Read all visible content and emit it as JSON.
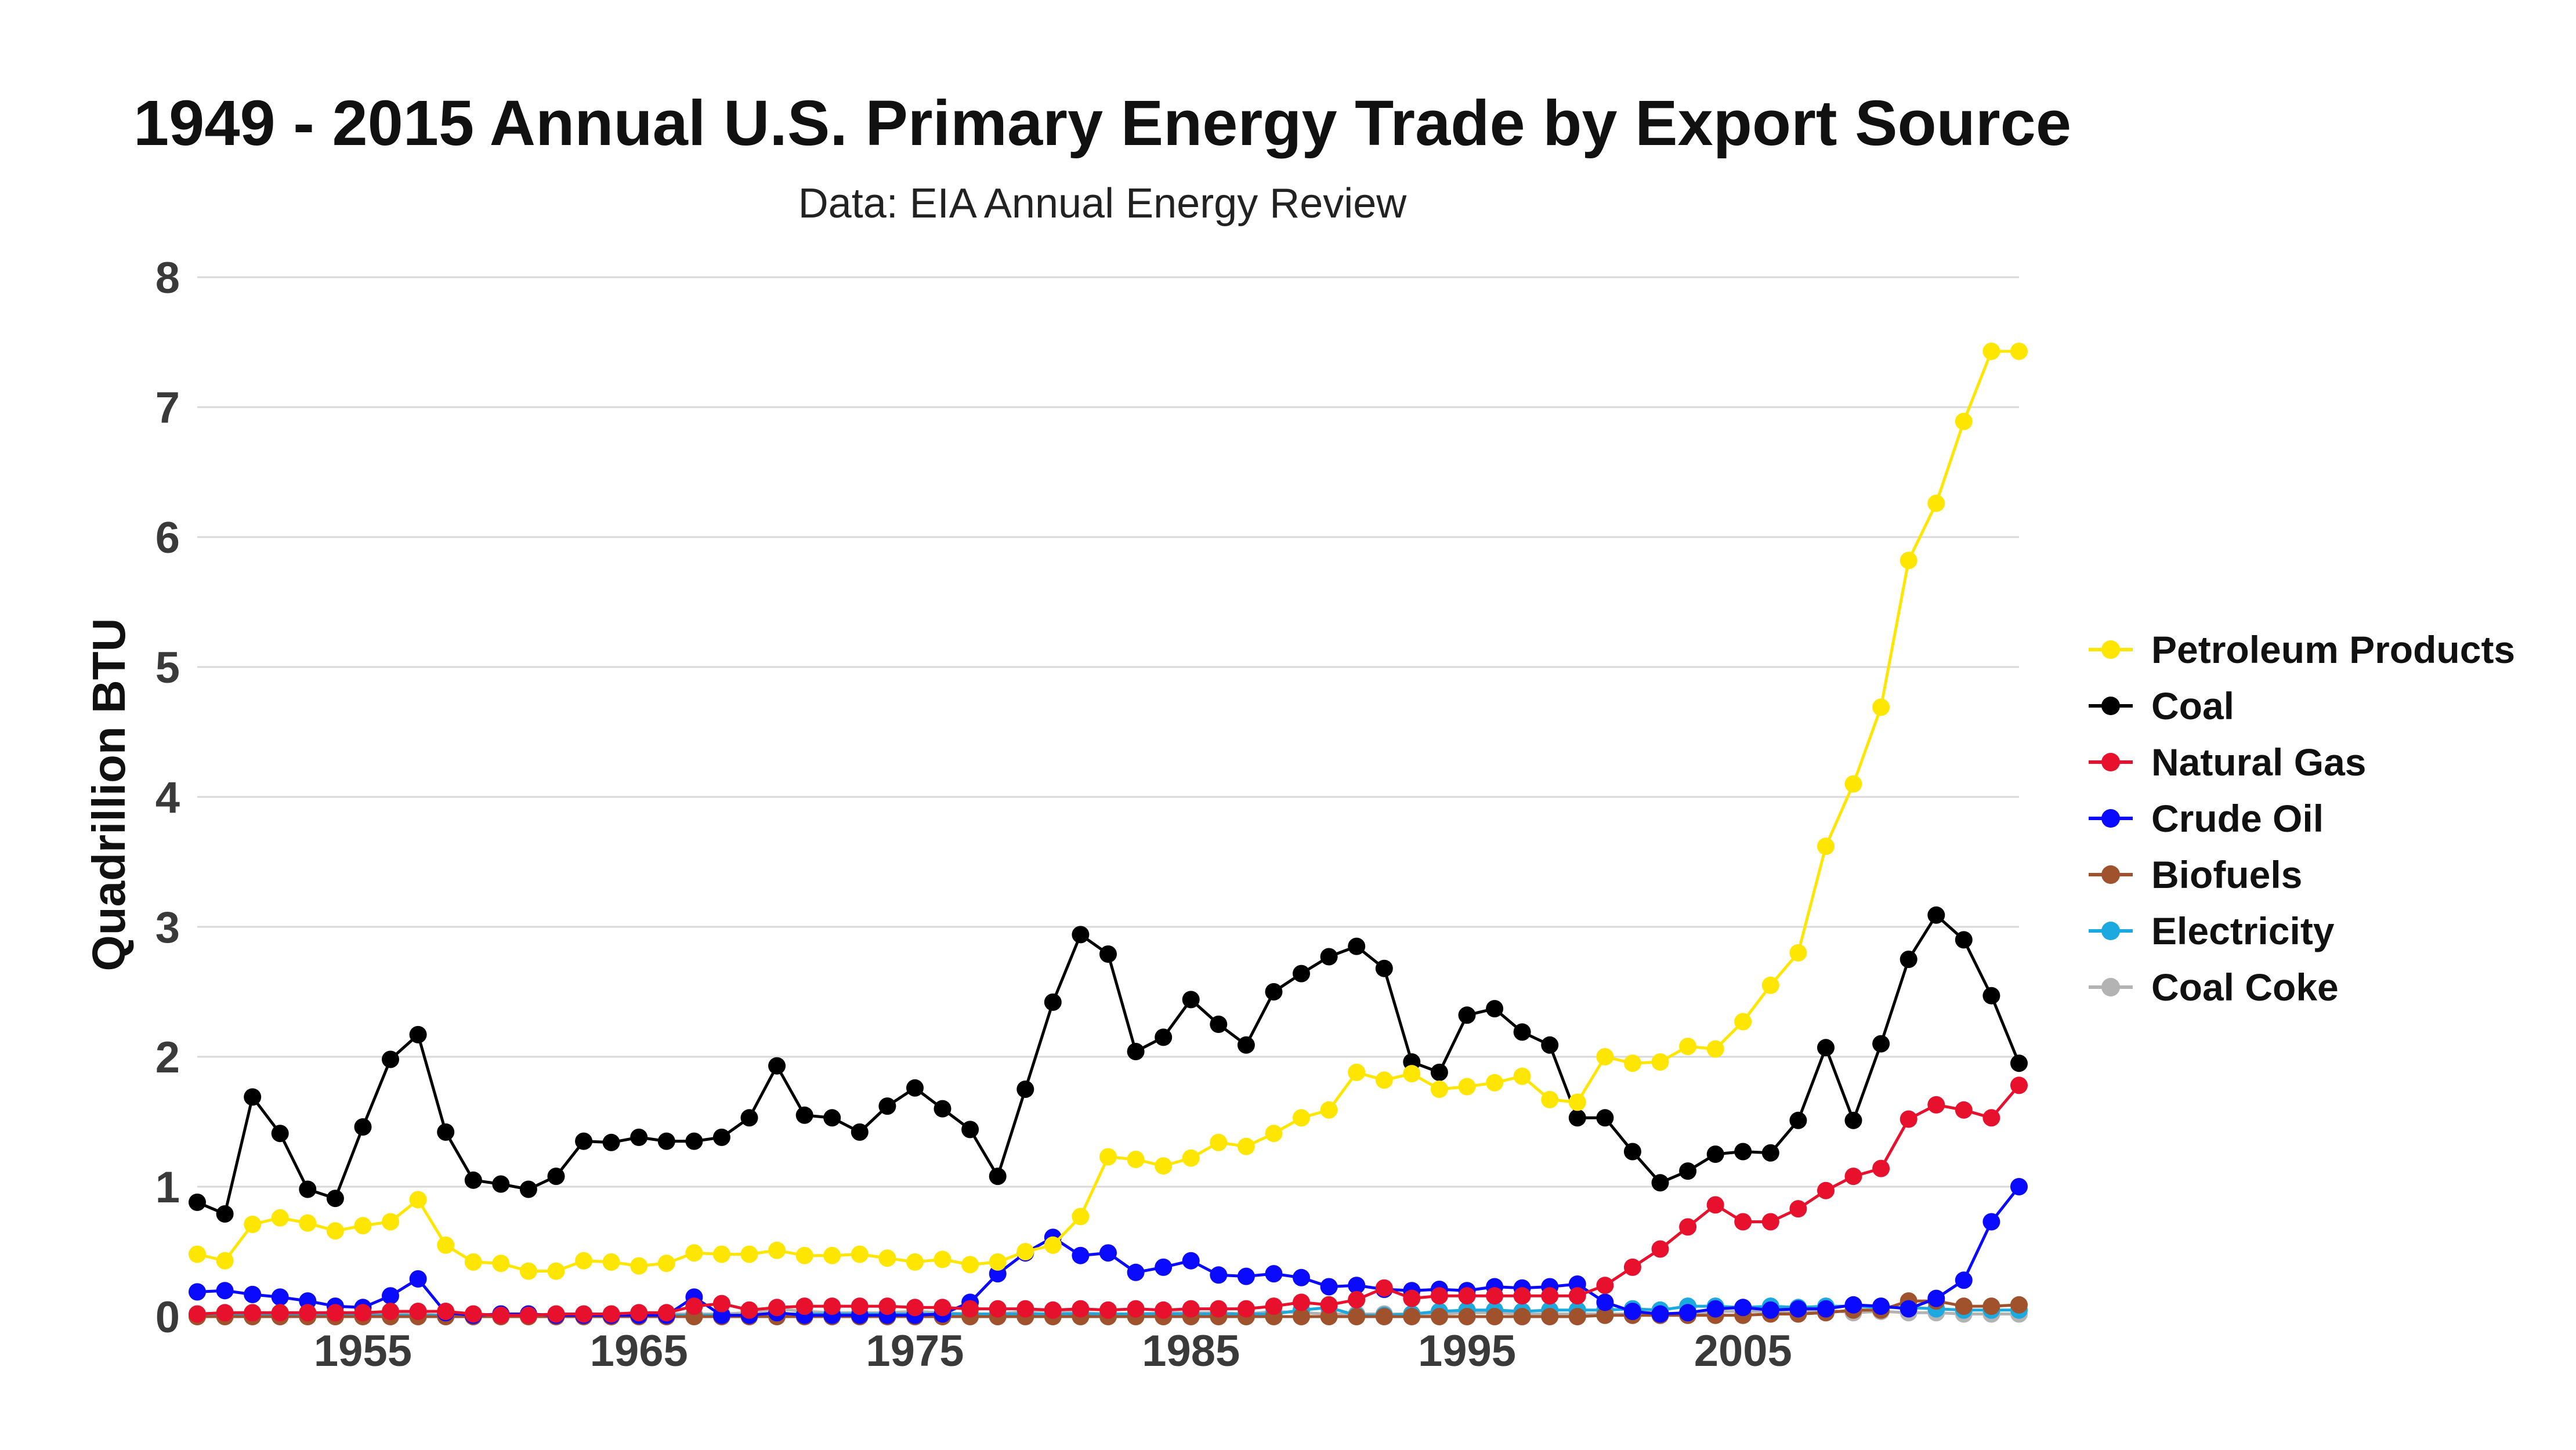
{
  "chart_data": {
    "type": "line",
    "title": "1949 - 2015 Annual U.S. Primary Energy Trade by Export Source",
    "subtitle": "Data: EIA Annual Energy Review",
    "ylabel": "Quadrillion BTU",
    "xlabel": "",
    "xlim": [
      1949,
      2015
    ],
    "ylim": [
      0,
      8
    ],
    "x_ticks": [
      1955,
      1965,
      1975,
      1985,
      1995,
      2005
    ],
    "y_ticks": [
      0,
      1,
      2,
      3,
      4,
      5,
      6,
      7,
      8
    ],
    "grid": "horizontal",
    "legend_position": "right",
    "x": [
      1949,
      1950,
      1951,
      1952,
      1953,
      1954,
      1955,
      1956,
      1957,
      1958,
      1959,
      1960,
      1961,
      1962,
      1963,
      1964,
      1965,
      1966,
      1967,
      1968,
      1969,
      1970,
      1971,
      1972,
      1973,
      1974,
      1975,
      1976,
      1977,
      1978,
      1979,
      1980,
      1981,
      1982,
      1983,
      1984,
      1985,
      1986,
      1987,
      1988,
      1989,
      1990,
      1991,
      1992,
      1993,
      1994,
      1995,
      1996,
      1997,
      1998,
      1999,
      2000,
      2001,
      2002,
      2003,
      2004,
      2005,
      2006,
      2007,
      2008,
      2009,
      2010,
      2011,
      2012,
      2013,
      2014,
      2015
    ],
    "series": [
      {
        "name": "Petroleum Products",
        "color": "#ffe600",
        "values": [
          0.48,
          0.43,
          0.71,
          0.76,
          0.72,
          0.66,
          0.7,
          0.73,
          0.9,
          0.55,
          0.42,
          0.41,
          0.35,
          0.35,
          0.43,
          0.42,
          0.39,
          0.41,
          0.49,
          0.48,
          0.48,
          0.51,
          0.47,
          0.47,
          0.48,
          0.45,
          0.42,
          0.44,
          0.4,
          0.42,
          0.5,
          0.55,
          0.77,
          1.23,
          1.21,
          1.16,
          1.22,
          1.34,
          1.31,
          1.41,
          1.53,
          1.59,
          1.88,
          1.82,
          1.87,
          1.75,
          1.77,
          1.8,
          1.85,
          1.67,
          1.65,
          2.0,
          1.95,
          1.96,
          2.08,
          2.06,
          2.27,
          2.55,
          2.8,
          3.62,
          4.1,
          4.69,
          5.82,
          6.26,
          6.89,
          7.43,
          7.43
        ]
      },
      {
        "name": "Coal",
        "color": "#000000",
        "values": [
          0.88,
          0.79,
          1.69,
          1.41,
          0.98,
          0.91,
          1.46,
          1.98,
          2.17,
          1.42,
          1.05,
          1.02,
          0.98,
          1.08,
          1.35,
          1.34,
          1.38,
          1.35,
          1.35,
          1.38,
          1.53,
          1.93,
          1.55,
          1.53,
          1.42,
          1.62,
          1.76,
          1.6,
          1.44,
          1.08,
          1.75,
          2.42,
          2.94,
          2.79,
          2.04,
          2.15,
          2.44,
          2.25,
          2.09,
          2.5,
          2.64,
          2.77,
          2.85,
          2.68,
          1.96,
          1.88,
          2.32,
          2.37,
          2.19,
          2.09,
          1.53,
          1.53,
          1.27,
          1.03,
          1.12,
          1.25,
          1.27,
          1.26,
          1.51,
          2.07,
          1.51,
          2.1,
          2.75,
          3.09,
          2.9,
          2.47,
          1.95
        ]
      },
      {
        "name": "Natural Gas",
        "color": "#e8112d",
        "values": [
          0.02,
          0.03,
          0.03,
          0.03,
          0.03,
          0.03,
          0.03,
          0.04,
          0.04,
          0.04,
          0.02,
          0.01,
          0.01,
          0.02,
          0.02,
          0.02,
          0.03,
          0.03,
          0.08,
          0.1,
          0.05,
          0.07,
          0.08,
          0.08,
          0.08,
          0.08,
          0.07,
          0.07,
          0.06,
          0.06,
          0.06,
          0.05,
          0.06,
          0.05,
          0.06,
          0.05,
          0.06,
          0.06,
          0.06,
          0.08,
          0.11,
          0.09,
          0.13,
          0.22,
          0.14,
          0.16,
          0.16,
          0.16,
          0.16,
          0.16,
          0.16,
          0.24,
          0.38,
          0.52,
          0.69,
          0.86,
          0.73,
          0.73,
          0.83,
          0.97,
          1.08,
          1.14,
          1.52,
          1.63,
          1.59,
          1.53,
          1.78
        ]
      },
      {
        "name": "Crude Oil",
        "color": "#0a0aff",
        "values": [
          0.19,
          0.2,
          0.17,
          0.15,
          0.12,
          0.08,
          0.07,
          0.16,
          0.29,
          0.03,
          0.01,
          0.02,
          0.02,
          0.01,
          0.01,
          0.01,
          0.01,
          0.01,
          0.15,
          0.01,
          0.01,
          0.03,
          0.01,
          0.01,
          0.01,
          0.01,
          0.01,
          0.02,
          0.11,
          0.33,
          0.49,
          0.61,
          0.47,
          0.49,
          0.34,
          0.38,
          0.43,
          0.32,
          0.31,
          0.33,
          0.3,
          0.23,
          0.24,
          0.21,
          0.2,
          0.21,
          0.2,
          0.23,
          0.22,
          0.23,
          0.25,
          0.11,
          0.04,
          0.02,
          0.03,
          0.06,
          0.07,
          0.05,
          0.06,
          0.06,
          0.09,
          0.08,
          0.06,
          0.14,
          0.28,
          0.73,
          1.0
        ]
      },
      {
        "name": "Biofuels",
        "color": "#a0522d",
        "values": [
          0,
          0,
          0,
          0,
          0,
          0,
          0,
          0,
          0,
          0,
          0,
          0,
          0,
          0,
          0,
          0,
          0,
          0,
          0,
          0,
          0,
          0,
          0,
          0,
          0,
          0,
          0,
          0,
          0,
          0,
          0,
          0,
          0,
          0,
          0,
          0,
          0,
          0,
          0,
          0,
          0,
          0,
          0,
          0,
          0,
          0,
          0,
          0,
          0,
          0,
          0,
          0.01,
          0.01,
          0.01,
          0.01,
          0.01,
          0.01,
          0.02,
          0.02,
          0.03,
          0.05,
          0.05,
          0.12,
          0.12,
          0.08,
          0.08,
          0.09
        ]
      },
      {
        "name": "Electricity",
        "color": "#1ca9e0",
        "values": [
          0.01,
          0.01,
          0.01,
          0.01,
          0.01,
          0.01,
          0.01,
          0.01,
          0.01,
          0.01,
          0.01,
          0.01,
          0.01,
          0.01,
          0.01,
          0.01,
          0.01,
          0.01,
          0.01,
          0.01,
          0.01,
          0.02,
          0.02,
          0.02,
          0.02,
          0.02,
          0.02,
          0.02,
          0.02,
          0.02,
          0.02,
          0.02,
          0.02,
          0.02,
          0.02,
          0.02,
          0.02,
          0.02,
          0.02,
          0.02,
          0.05,
          0.07,
          0.01,
          0.01,
          0.02,
          0.04,
          0.05,
          0.05,
          0.04,
          0.05,
          0.05,
          0.05,
          0.06,
          0.05,
          0.08,
          0.08,
          0.07,
          0.08,
          0.07,
          0.08,
          0.08,
          0.07,
          0.07,
          0.06,
          0.05,
          0.05,
          0.05
        ]
      },
      {
        "name": "Coal Coke",
        "color": "#b3b3b3",
        "values": [
          0.01,
          0.01,
          0.02,
          0.01,
          0.01,
          0.01,
          0.01,
          0.02,
          0.02,
          0.01,
          0.01,
          0.01,
          0.01,
          0.01,
          0.01,
          0.01,
          0.02,
          0.02,
          0.02,
          0.02,
          0.03,
          0.06,
          0.04,
          0.03,
          0.03,
          0.03,
          0.04,
          0.03,
          0.02,
          0.02,
          0.04,
          0.05,
          0.03,
          0.02,
          0.02,
          0.03,
          0.03,
          0.03,
          0.02,
          0.04,
          0.03,
          0.02,
          0.02,
          0.02,
          0.02,
          0.02,
          0.03,
          0.03,
          0.02,
          0.02,
          0.02,
          0.02,
          0.02,
          0.02,
          0.02,
          0.04,
          0.04,
          0.04,
          0.04,
          0.05,
          0.03,
          0.04,
          0.03,
          0.03,
          0.02,
          0.02,
          0.02
        ]
      }
    ]
  }
}
